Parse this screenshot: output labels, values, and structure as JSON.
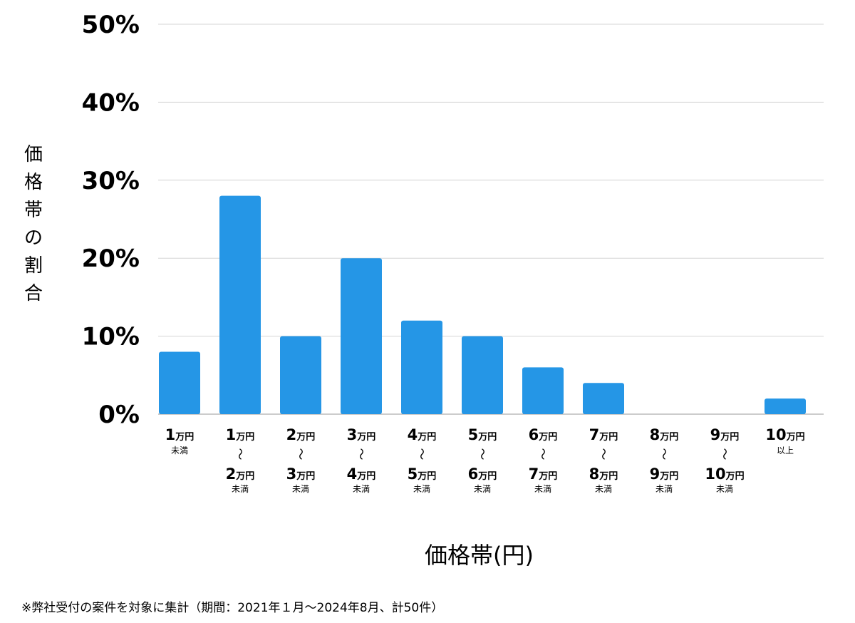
{
  "chart_data": {
    "type": "bar",
    "xlabel": "価格帯(円)",
    "ylabel": "価格帯の割合",
    "ylim": [
      0,
      50
    ],
    "yticks": [
      {
        "value": 0,
        "label": "0%"
      },
      {
        "value": 10,
        "label": "10%"
      },
      {
        "value": 20,
        "label": "20%"
      },
      {
        "value": 30,
        "label": "30%"
      },
      {
        "value": 40,
        "label": "40%"
      },
      {
        "value": 50,
        "label": "50%"
      }
    ],
    "grid": true,
    "bar_color": "#2596e6",
    "categories": [
      {
        "from": "1",
        "from_unit": "万円",
        "to": null,
        "to_unit": null,
        "note": "未満"
      },
      {
        "from": "1",
        "from_unit": "万円",
        "to": "2",
        "to_unit": "万円",
        "note": "未満"
      },
      {
        "from": "2",
        "from_unit": "万円",
        "to": "3",
        "to_unit": "万円",
        "note": "未満"
      },
      {
        "from": "3",
        "from_unit": "万円",
        "to": "4",
        "to_unit": "万円",
        "note": "未満"
      },
      {
        "from": "4",
        "from_unit": "万円",
        "to": "5",
        "to_unit": "万円",
        "note": "未満"
      },
      {
        "from": "5",
        "from_unit": "万円",
        "to": "6",
        "to_unit": "万円",
        "note": "未満"
      },
      {
        "from": "6",
        "from_unit": "万円",
        "to": "7",
        "to_unit": "万円",
        "note": "未満"
      },
      {
        "from": "7",
        "from_unit": "万円",
        "to": "8",
        "to_unit": "万円",
        "note": "未満"
      },
      {
        "from": "8",
        "from_unit": "万円",
        "to": "9",
        "to_unit": "万円",
        "note": "未満"
      },
      {
        "from": "9",
        "from_unit": "万円",
        "to": "10",
        "to_unit": "万円",
        "note": "未満"
      },
      {
        "from": "10",
        "from_unit": "万円",
        "to": null,
        "to_unit": null,
        "note": "以上"
      }
    ],
    "range_symbol": "〜",
    "values": [
      8,
      28,
      10,
      20,
      12,
      10,
      6,
      4,
      0,
      0,
      2
    ]
  },
  "footnote": "※弊社受付の案件を対象に集計（期間：2021年１月〜2024年8月、計50件）"
}
